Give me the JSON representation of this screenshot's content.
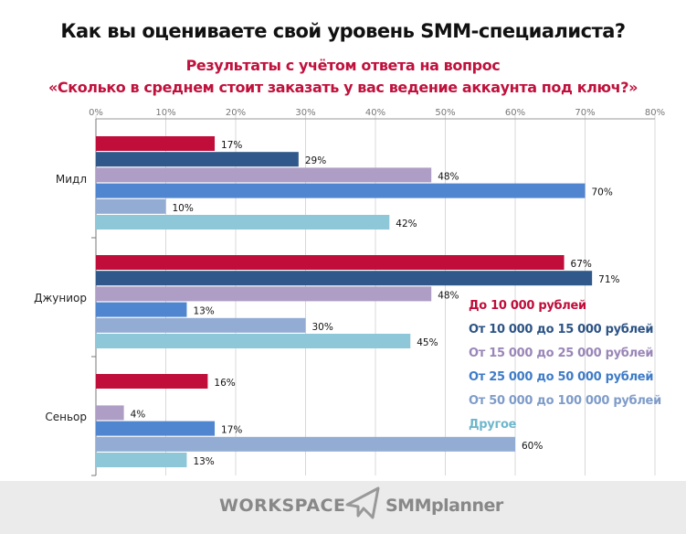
{
  "title": "Как вы оцениваете свой уровень SMM-специалиста?",
  "subtitle_1": "Результаты с учётом ответа на вопрос",
  "subtitle_2": "«Сколько в среднем стоит заказать у вас ведение аккаунта под ключ?»",
  "footer": {
    "logo_1": "WORKSPACE",
    "logo_2": "SMMplanner"
  },
  "chart_data": {
    "type": "bar",
    "orientation": "horizontal",
    "title": "Как вы оцениваете свой уровень SMM-специалиста?",
    "categories": [
      "Мидл",
      "Джуниор",
      "Сеньор"
    ],
    "xlim": [
      0,
      80
    ],
    "xticks": [
      "0%",
      "10%",
      "20%",
      "30%",
      "40%",
      "50%",
      "60%",
      "70%",
      "80%"
    ],
    "grid": true,
    "legend_placement": "right-bottom",
    "series": [
      {
        "name": "До 10 000 рублей",
        "color": "#c00d3a",
        "label_color": "#c00d3a",
        "values": [
          17,
          67,
          16
        ]
      },
      {
        "name": "От 10 000 до 15 000 рублей",
        "color": "#30588a",
        "label_color": "#2d5486",
        "values": [
          29,
          71,
          null
        ]
      },
      {
        "name": "От 15 000 до 25 000 рублей",
        "color": "#ae9dc4",
        "label_color": "#9a86b8",
        "values": [
          48,
          48,
          4
        ]
      },
      {
        "name": "От 25 000 до 50 000 рублей",
        "color": "#4f86cf",
        "label_color": "#3f7cc8",
        "values": [
          70,
          13,
          17
        ]
      },
      {
        "name": "От 50 000 до 100 000 рублей",
        "color": "#92acd4",
        "label_color": "#7f9cc9",
        "values": [
          10,
          30,
          60
        ]
      },
      {
        "name": "Другое",
        "color": "#8ec7d8",
        "label_color": "#6fb7cc",
        "values": [
          42,
          45,
          13
        ]
      }
    ]
  }
}
